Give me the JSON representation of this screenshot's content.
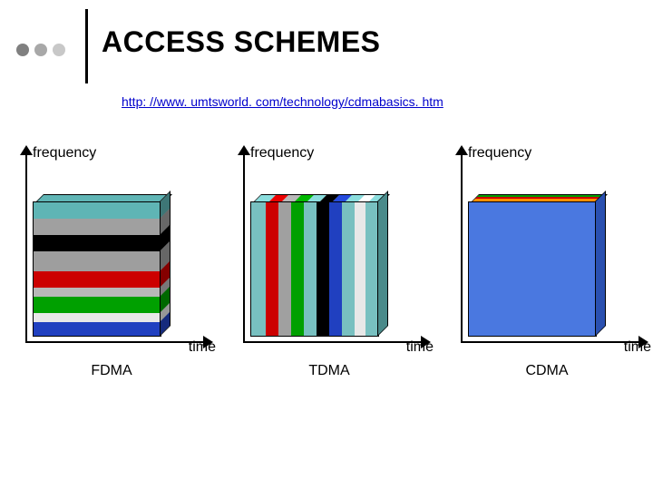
{
  "header": {
    "bullets": [
      "#808080",
      "#a8a8a8",
      "#c8c8c8"
    ],
    "rule_color": "#000000",
    "title": "ACCESS SCHEMES",
    "link": "http: //www. umtsworld. com/technology/cdmabasics. htm"
  },
  "axis": {
    "ylabel": "frequency",
    "xlabel": "time",
    "color": "#000000"
  },
  "panels": [
    {
      "name": "FDMA",
      "type": "3d-cube-horizontal-stripes",
      "front_stripes": [
        {
          "color": "#5fb5b5",
          "h": 18
        },
        {
          "color": "#a0a0a0",
          "h": 18
        },
        {
          "color": "#000000",
          "h": 18
        },
        {
          "color": "#9e9e9e",
          "h": 22
        },
        {
          "color": "#cc0000",
          "h": 18
        },
        {
          "color": "#b8b8b8",
          "h": 10
        },
        {
          "color": "#00a000",
          "h": 18
        },
        {
          "color": "#e8e8e8",
          "h": 10
        },
        {
          "color": "#2040c0",
          "h": 15
        }
      ],
      "top_color": "#5fb5b5",
      "side_shade": 0.65
    },
    {
      "name": "TDMA",
      "type": "3d-cube-vertical-stripes",
      "front_stripes": [
        {
          "color": "#78c0c0",
          "w": 16
        },
        {
          "color": "#cc0000",
          "w": 14
        },
        {
          "color": "#a0a0a0",
          "w": 14
        },
        {
          "color": "#00a000",
          "w": 14
        },
        {
          "color": "#78c0c0",
          "w": 14
        },
        {
          "color": "#000000",
          "w": 14
        },
        {
          "color": "#2040c0",
          "w": 14
        },
        {
          "color": "#78c0c0",
          "w": 14
        },
        {
          "color": "#e8e8e8",
          "w": 12
        },
        {
          "color": "#78c0c0",
          "w": 14
        }
      ],
      "top_shade": 1.15,
      "side_color": "#4a8a8a"
    },
    {
      "name": "CDMA",
      "type": "3d-cube-layered",
      "front_color": "#4a78e0",
      "top_layers": [
        {
          "color": "#00a000",
          "h": 2
        },
        {
          "color": "#cc0000",
          "h": 2
        },
        {
          "color": "#ff9000",
          "h": 3
        },
        {
          "color": "#6a90e8",
          "h": 3
        }
      ],
      "side_color": "#2a50b0"
    }
  ]
}
